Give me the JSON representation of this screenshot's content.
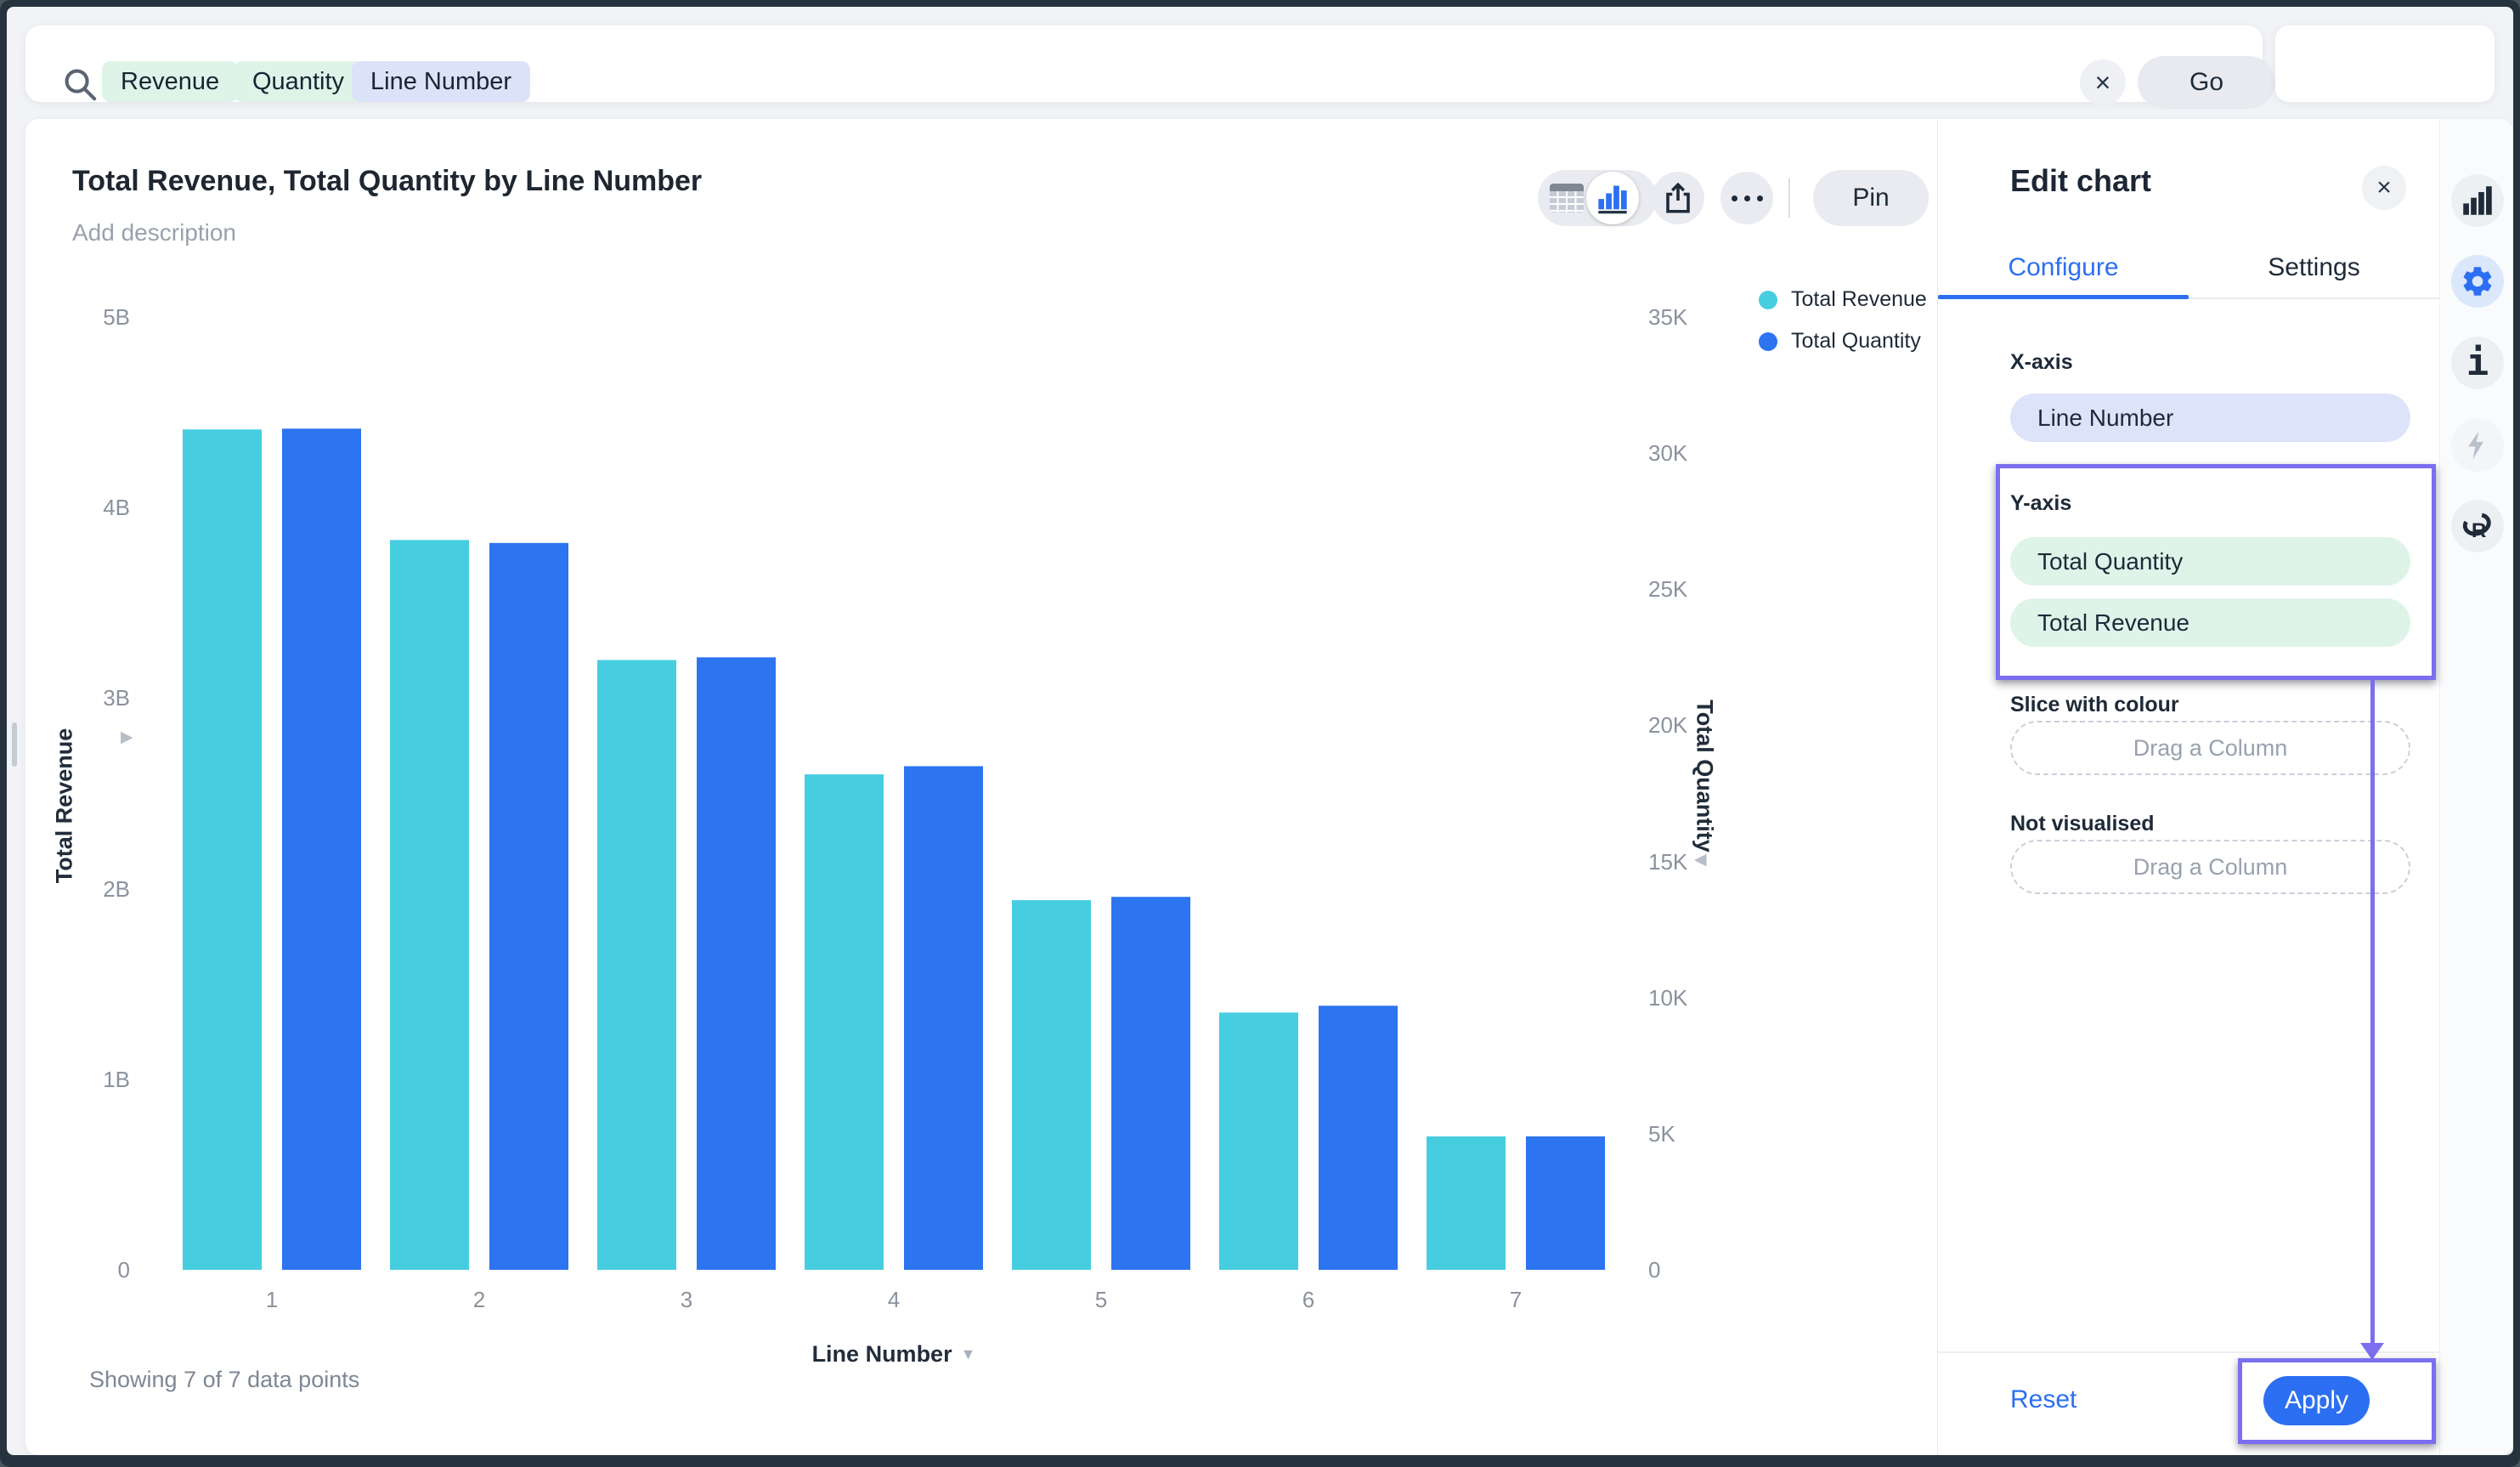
{
  "search_bar": {
    "tokens": [
      {
        "label": "Revenue",
        "type": "measure"
      },
      {
        "label": "Quantity",
        "type": "measure"
      },
      {
        "label": "Line Number",
        "type": "attribute"
      }
    ],
    "clear_glyph": "×",
    "go_label": "Go"
  },
  "chart_header": {
    "title": "Total Revenue, Total Quantity by Line Number",
    "description_placeholder": "Add description",
    "pin_label": "Pin"
  },
  "chart_data": {
    "type": "bar",
    "title": "Total Revenue, Total Quantity by Line Number",
    "categories": [
      "1",
      "2",
      "3",
      "4",
      "5",
      "6",
      "7"
    ],
    "series": [
      {
        "name": "Total Revenue",
        "axis": "left",
        "unit": "B",
        "color": "#47CDE0",
        "values": [
          4.41,
          3.83,
          3.2,
          2.6,
          1.94,
          1.35,
          0.7
        ]
      },
      {
        "name": "Total Quantity",
        "axis": "right",
        "unit": "K",
        "color": "#2C74F0",
        "values": [
          30.9,
          26.7,
          22.5,
          18.5,
          13.7,
          9.7,
          4.9
        ]
      }
    ],
    "xlabel": "Line Number",
    "left_axis": {
      "title": "Total Revenue",
      "max": 5,
      "ticks": [
        "0",
        "1B",
        "2B",
        "3B",
        "4B",
        "5B"
      ]
    },
    "right_axis": {
      "title": "Total Quantity",
      "max": 35,
      "ticks": [
        "0",
        "5K",
        "10K",
        "15K",
        "20K",
        "25K",
        "30K",
        "35K"
      ]
    },
    "grid": false,
    "legend_position": "top-right"
  },
  "status": {
    "showing": "Showing 7 of 7 data points"
  },
  "edit_panel": {
    "title": "Edit chart",
    "close_glyph": "×",
    "tabs": [
      {
        "label": "Configure",
        "active": true
      },
      {
        "label": "Settings",
        "active": false
      }
    ],
    "x_axis": {
      "label": "X-axis",
      "value": "Line Number"
    },
    "y_axis": {
      "label": "Y-axis",
      "values": [
        "Total Quantity",
        "Total Revenue"
      ]
    },
    "slice": {
      "label": "Slice with colour",
      "placeholder": "Drag a Column"
    },
    "not_visualised": {
      "label": "Not visualised",
      "placeholder": "Drag a Column"
    },
    "reset_label": "Reset",
    "apply_label": "Apply"
  },
  "colors": {
    "accent_blue": "#2C6FF2",
    "bar_cyan": "#47CDE0",
    "bar_blue": "#2C74F0",
    "annotation_purple": "#7B6FF0",
    "token_green": "#DEF4E8",
    "token_lavender": "#DCE2F7",
    "mint_pill": "#DFF4E9"
  },
  "glyphs": {
    "ellipsis_dots": 3,
    "caret_down": "▼",
    "sort_right": "▶",
    "sort_left": "◀",
    "info": "i",
    "r_logo": "R"
  }
}
